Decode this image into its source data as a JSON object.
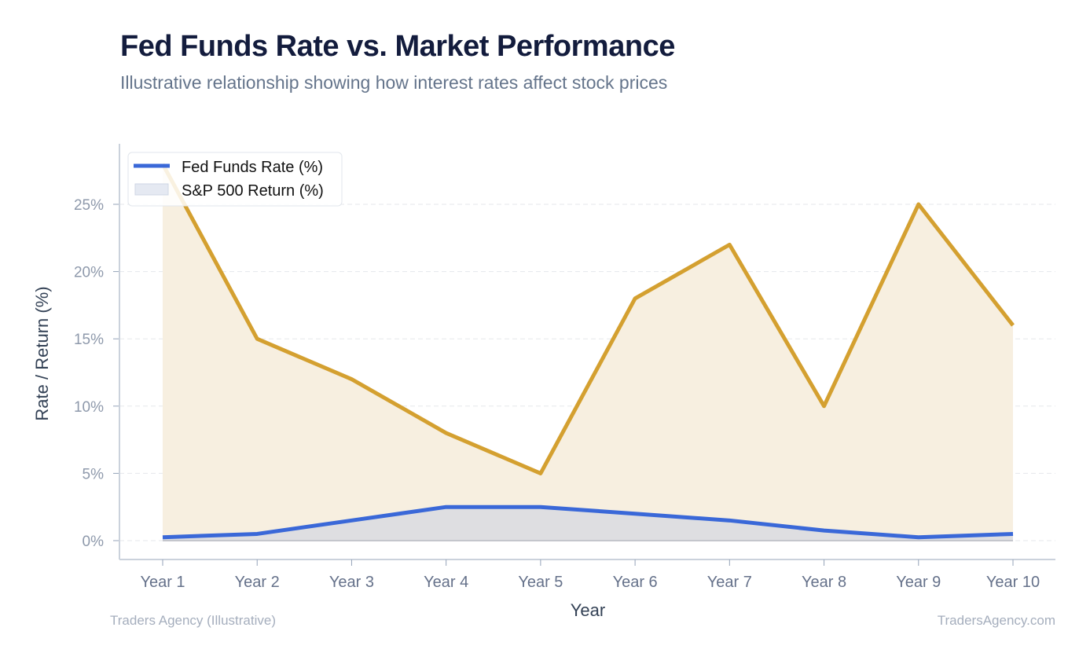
{
  "chart_data": {
    "type": "line",
    "title": "Fed Funds Rate vs. Market Performance",
    "subtitle": "Illustrative relationship showing how interest rates affect stock prices",
    "xlabel": "Year",
    "ylabel": "Rate / Return (%)",
    "categories": [
      "Year 1",
      "Year 2",
      "Year 3",
      "Year 4",
      "Year 5",
      "Year 6",
      "Year 7",
      "Year 8",
      "Year 9",
      "Year 10"
    ],
    "ylim": [
      -1.4,
      29.5
    ],
    "yticks": [
      0,
      5,
      10,
      15,
      20,
      25
    ],
    "ytick_labels": [
      "0%",
      "5%",
      "10%",
      "15%",
      "20%",
      "25%"
    ],
    "grid": true,
    "legend_position": "top-left",
    "series": [
      {
        "name": "Fed Funds Rate (%)",
        "color": "#3a68d8",
        "fill": "#dcdce0",
        "values": [
          0.25,
          0.5,
          1.5,
          2.5,
          2.5,
          2.0,
          1.5,
          0.75,
          0.25,
          0.5
        ]
      },
      {
        "name": "S&P 500 Return (%)",
        "color": "#d4a030",
        "fill": "#f7efe0",
        "values": [
          28,
          15,
          12,
          8,
          5,
          18,
          22,
          10,
          25,
          16
        ]
      }
    ]
  },
  "footer": {
    "left": "Traders Agency (Illustrative)",
    "right": "TradersAgency.com"
  }
}
